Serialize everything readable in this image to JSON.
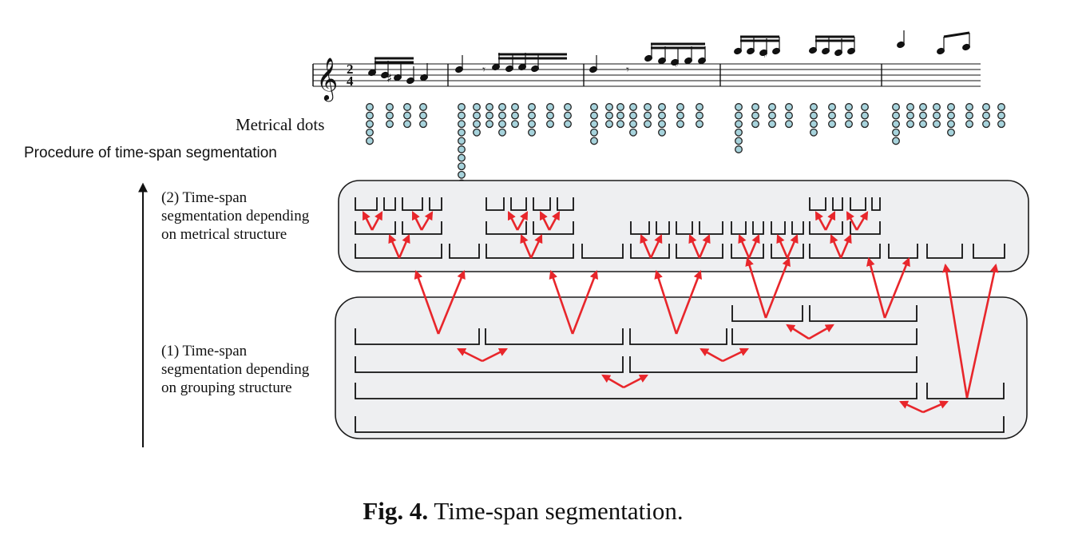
{
  "labels": {
    "metrical_dots": "Metrical dots",
    "procedure": "Procedure of time-span segmentation",
    "step2_lines": [
      "(2) Time-span",
      "segmentation depending",
      "on metrical structure"
    ],
    "step1_lines": [
      "(1) Time-span",
      "segmentation depending",
      "on grouping structure"
    ]
  },
  "caption": {
    "label": "Fig. 4.",
    "text": "Time-span segmentation."
  },
  "score": {
    "time_signature": [
      "2",
      "4"
    ]
  },
  "colors": {
    "arrow": "#e8262b",
    "panel_fill": "#eeeff1",
    "panel_stroke": "#1a1a1a",
    "dot_fill": "#a7d3dc"
  }
}
